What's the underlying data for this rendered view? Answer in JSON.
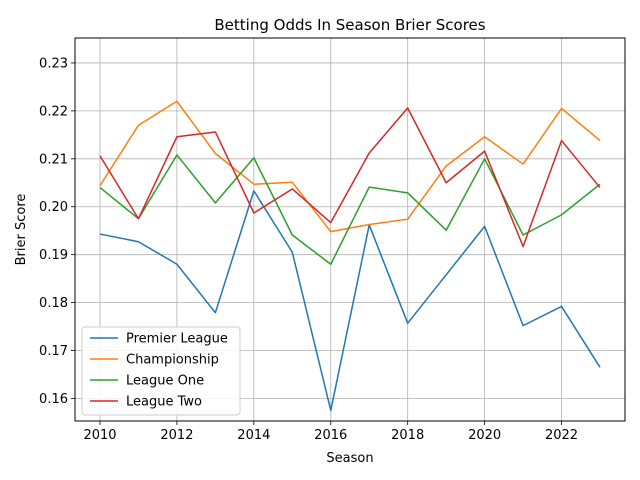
{
  "chart_data": {
    "type": "line",
    "title": "Betting Odds In Season Brier Scores",
    "xlabel": "Season",
    "ylabel": "Brier Score",
    "x": [
      2010,
      2011,
      2012,
      2013,
      2014,
      2015,
      2016,
      2017,
      2018,
      2019,
      2020,
      2021,
      2022,
      2023
    ],
    "xlim": [
      2009.35,
      2023.65
    ],
    "ylim": [
      0.1553,
      0.2352
    ],
    "xticks": [
      2010,
      2012,
      2014,
      2016,
      2018,
      2020,
      2022
    ],
    "yticks": [
      0.16,
      0.17,
      0.18,
      0.19,
      0.2,
      0.21,
      0.22,
      0.23
    ],
    "ytick_labels": [
      "0.16",
      "0.17",
      "0.18",
      "0.19",
      "0.20",
      "0.21",
      "0.22",
      "0.23"
    ],
    "grid": true,
    "legend_position": "lower-left",
    "series": [
      {
        "name": "Premier League",
        "color": "#1f77b4",
        "values": [
          0.1943,
          0.1927,
          0.188,
          0.1779,
          0.2033,
          0.1905,
          0.1575,
          0.1962,
          0.1757,
          0.1858,
          0.1959,
          0.1752,
          0.1792,
          0.1665
        ]
      },
      {
        "name": "Championship",
        "color": "#ff7f0e",
        "values": [
          0.2044,
          0.217,
          0.222,
          0.2111,
          0.2047,
          0.2051,
          0.1948,
          0.1963,
          0.1974,
          0.2085,
          0.2146,
          0.2089,
          0.2205,
          0.2138
        ]
      },
      {
        "name": "League One",
        "color": "#2ca02c",
        "values": [
          0.204,
          0.1975,
          0.2108,
          0.2008,
          0.2102,
          0.1941,
          0.188,
          0.2041,
          0.2029,
          0.1951,
          0.21,
          0.1941,
          0.1983,
          0.2047
        ]
      },
      {
        "name": "League Two",
        "color": "#d62728",
        "values": [
          0.2106,
          0.1975,
          0.2146,
          0.2156,
          0.1987,
          0.2037,
          0.1967,
          0.2112,
          0.2206,
          0.205,
          0.2116,
          0.1917,
          0.2138,
          0.204
        ]
      }
    ]
  }
}
